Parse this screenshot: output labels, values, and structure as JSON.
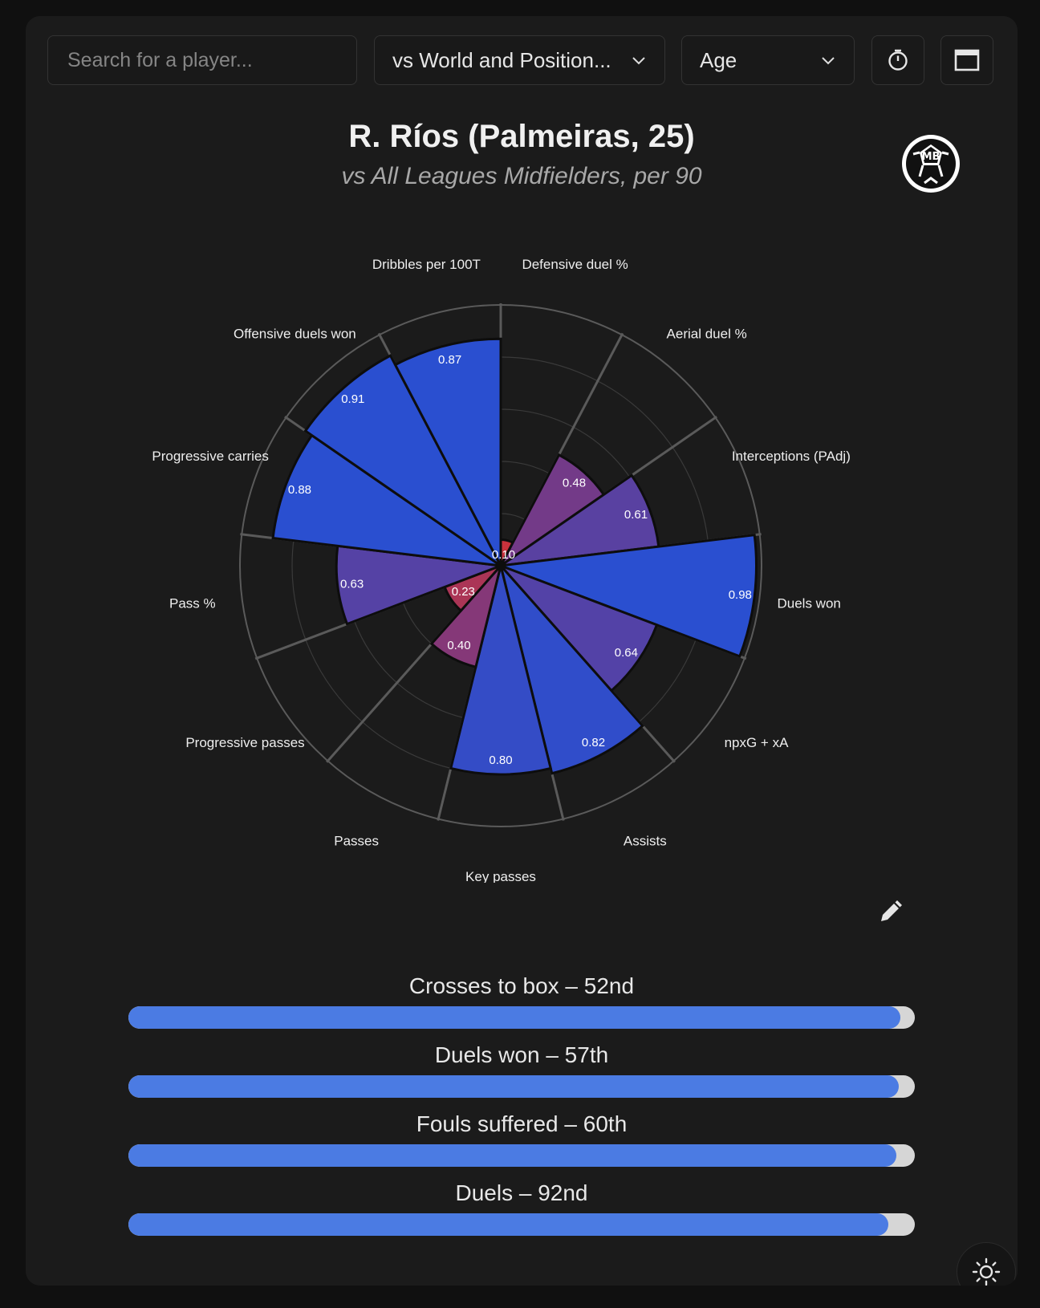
{
  "toolbar": {
    "search_placeholder": "Search for a player...",
    "comparison_select": "vs World and Position...",
    "sort_select": "Age",
    "icons": [
      "stopwatch-icon",
      "window-icon"
    ]
  },
  "header": {
    "title": "R. Ríos (Palmeiras, 25)",
    "subtitle": "vs All Leagues Midfielders, per 90",
    "logo_icon": "mb-football-logo"
  },
  "chart_data": {
    "type": "polar-bar",
    "title": "R. Ríos (Palmeiras, 25)",
    "subtitle": "vs All Leagues Midfielders, per 90",
    "rmax": 1.0,
    "categories": [
      "Defensive duel %",
      "Aerial duel %",
      "Interceptions (PAdj)",
      "Duels won",
      "npxG + xA",
      "Assists",
      "Key passes",
      "Passes",
      "Progressive passes",
      "Pass %",
      "Progressive carries",
      "Offensive duels won",
      "Dribbles per 100T"
    ],
    "values": [
      0.1,
      0.48,
      0.61,
      0.98,
      0.64,
      0.82,
      0.8,
      0.4,
      0.23,
      0.63,
      0.88,
      0.91,
      0.87
    ],
    "value_labels": [
      "0.10",
      "0.48",
      "0.61",
      "0.98",
      "0.64",
      "0.82",
      "0.80",
      "0.40",
      "0.23",
      "0.63",
      "0.88",
      "0.91",
      "0.87"
    ],
    "colors": {
      "low": "#c8323c",
      "mid": "#6e3a8c",
      "high": "#2a4fd0"
    }
  },
  "percentiles": [
    {
      "label": "Crosses to box – 52nd",
      "value": 0.982
    },
    {
      "label": "Duels won – 57th",
      "value": 0.98
    },
    {
      "label": "Fouls suffered – 60th",
      "value": 0.977
    },
    {
      "label": "Duels – 92nd",
      "value": 0.966
    }
  ],
  "colors": {
    "accent": "#4b7be3",
    "card": "#1b1b1b",
    "track": "#d6d6d6"
  },
  "footer": {
    "icons": [
      "pencil-icon",
      "sun-icon"
    ]
  }
}
